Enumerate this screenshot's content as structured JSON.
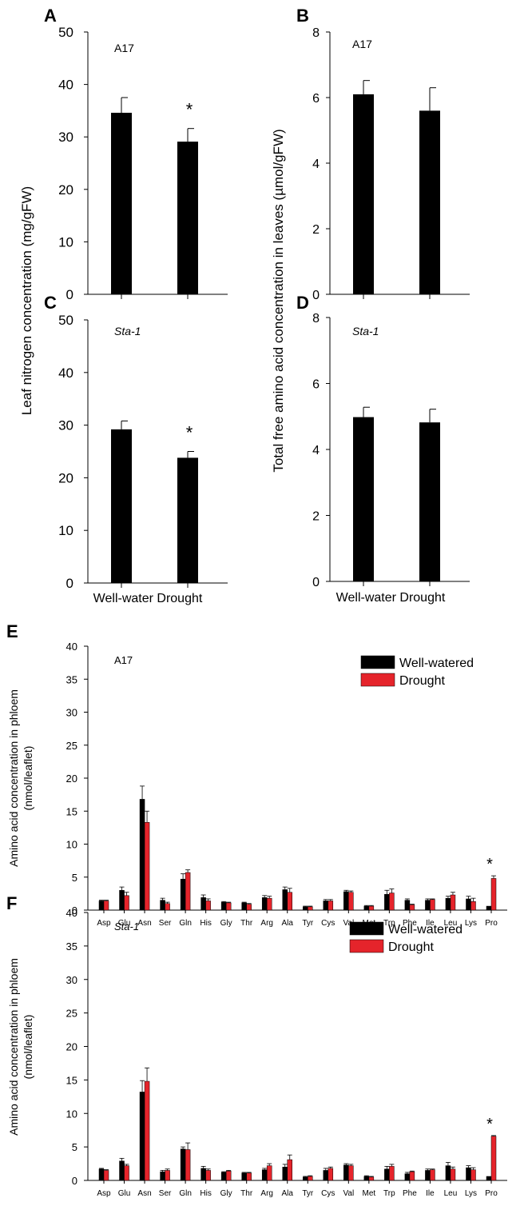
{
  "colors": {
    "well": "#000000",
    "drought": "#e5242b",
    "axis": "#000000"
  },
  "shared_labels": {
    "top_left_ylabel": "Leaf nitrogen concentration (mg/gFW)",
    "top_right_ylabel": "Total free amino acid concentration in leaves (µmol/gFW)",
    "top_left_xlabel": "Well-water Drought",
    "top_right_xlabel": "Well-water Drought",
    "phloem_ylabel_line1": "Amino acid concentration in phloem",
    "phloem_ylabel_line2": "(nmol/leaflet)"
  },
  "chart_data": [
    {
      "panel": "A",
      "type": "bar",
      "title": "A17",
      "categories": [
        "Well-water",
        "Drought"
      ],
      "values": [
        34.6,
        29.1
      ],
      "errors": [
        2.9,
        2.5
      ],
      "ylim": [
        0,
        50
      ],
      "yticks": [
        0,
        10,
        20,
        30,
        40,
        50
      ],
      "significance": [
        "",
        "*"
      ]
    },
    {
      "panel": "B",
      "type": "bar",
      "title": "A17",
      "categories": [
        "Well-water",
        "Drought"
      ],
      "values": [
        6.1,
        5.6
      ],
      "errors": [
        0.42,
        0.7
      ],
      "ylim": [
        0,
        8
      ],
      "yticks": [
        0,
        2,
        4,
        6,
        8
      ],
      "significance": [
        "",
        ""
      ]
    },
    {
      "panel": "C",
      "type": "bar",
      "title": "Sta-1",
      "categories": [
        "Well-water",
        "Drought"
      ],
      "values": [
        29.2,
        23.8
      ],
      "errors": [
        1.6,
        1.2
      ],
      "ylim": [
        0,
        50
      ],
      "yticks": [
        0,
        10,
        20,
        30,
        40,
        50
      ],
      "significance": [
        "",
        "*"
      ]
    },
    {
      "panel": "D",
      "type": "bar",
      "title": "Sta-1",
      "categories": [
        "Well-water",
        "Drought"
      ],
      "values": [
        4.98,
        4.82
      ],
      "errors": [
        0.3,
        0.4
      ],
      "ylim": [
        0,
        8
      ],
      "yticks": [
        0,
        2,
        4,
        6,
        8
      ],
      "significance": [
        "",
        ""
      ]
    },
    {
      "panel": "E",
      "type": "bar",
      "title": "A17",
      "categories": [
        "Asp",
        "Glu",
        "Asn",
        "Ser",
        "Gln",
        "His",
        "Gly",
        "Thr",
        "Arg",
        "Ala",
        "Tyr",
        "Cys",
        "Val",
        "Met",
        "Trp",
        "Phe",
        "Ile",
        "Leu",
        "Lys",
        "Pro"
      ],
      "series": [
        {
          "name": "Well-watered",
          "values": [
            1.4,
            3.0,
            16.8,
            1.5,
            4.7,
            1.9,
            1.2,
            1.1,
            1.9,
            3.1,
            0.5,
            1.4,
            2.8,
            0.6,
            2.4,
            1.5,
            1.5,
            1.8,
            1.7,
            0.6
          ],
          "errors": [
            0.1,
            0.5,
            2.0,
            0.3,
            0.8,
            0.4,
            0.1,
            0.1,
            0.3,
            0.4,
            0.1,
            0.2,
            0.2,
            0.1,
            0.6,
            0.2,
            0.2,
            0.3,
            0.4,
            0.0
          ]
        },
        {
          "name": "Drought",
          "values": [
            1.4,
            2.2,
            13.3,
            1.0,
            5.7,
            1.4,
            1.1,
            0.9,
            1.8,
            2.7,
            0.5,
            1.4,
            2.7,
            0.6,
            2.6,
            0.8,
            1.6,
            2.3,
            1.3,
            4.8
          ],
          "errors": [
            0.1,
            0.5,
            1.7,
            0.2,
            0.4,
            0.3,
            0.1,
            0.1,
            0.3,
            0.6,
            0.1,
            0.2,
            0.2,
            0.1,
            0.6,
            0.1,
            0.1,
            0.4,
            0.5,
            0.4
          ]
        }
      ],
      "ylim": [
        0,
        40
      ],
      "yticks": [
        0,
        5,
        10,
        15,
        20,
        25,
        30,
        35,
        40
      ],
      "significance_index": 19,
      "legend": "top-right"
    },
    {
      "panel": "F",
      "type": "bar",
      "title": "Sta-1",
      "categories": [
        "Asp",
        "Glu",
        "Asn",
        "Ser",
        "Gln",
        "His",
        "Gly",
        "Thr",
        "Arg",
        "Ala",
        "Tyr",
        "Cys",
        "Val",
        "Met",
        "Trp",
        "Phe",
        "Ile",
        "Leu",
        "Lys",
        "Pro"
      ],
      "series": [
        {
          "name": "Well-watered",
          "values": [
            1.7,
            2.9,
            13.2,
            1.3,
            4.7,
            1.8,
            1.2,
            1.1,
            1.6,
            2.0,
            0.5,
            1.5,
            2.3,
            0.6,
            1.7,
            1.0,
            1.5,
            2.2,
            1.9,
            0.6
          ],
          "errors": [
            0.1,
            0.4,
            1.7,
            0.2,
            0.3,
            0.3,
            0.1,
            0.1,
            0.2,
            0.4,
            0.1,
            0.3,
            0.2,
            0.1,
            0.4,
            0.2,
            0.2,
            0.5,
            0.3,
            0.0
          ]
        },
        {
          "name": "Drought",
          "values": [
            1.5,
            2.2,
            14.8,
            1.5,
            4.6,
            1.5,
            1.4,
            1.1,
            2.2,
            3.1,
            0.6,
            1.8,
            2.2,
            0.5,
            2.1,
            1.3,
            1.6,
            1.7,
            1.6,
            6.6
          ],
          "errors": [
            0.1,
            0.2,
            2.0,
            0.2,
            1.0,
            0.2,
            0.1,
            0.1,
            0.3,
            0.7,
            0.1,
            0.2,
            0.2,
            0.1,
            0.3,
            0.1,
            0.1,
            0.3,
            0.3,
            0.1
          ]
        }
      ],
      "ylim": [
        0,
        40
      ],
      "yticks": [
        0,
        5,
        10,
        15,
        20,
        25,
        30,
        35,
        40
      ],
      "significance_index": 19,
      "legend": "top-right"
    }
  ]
}
